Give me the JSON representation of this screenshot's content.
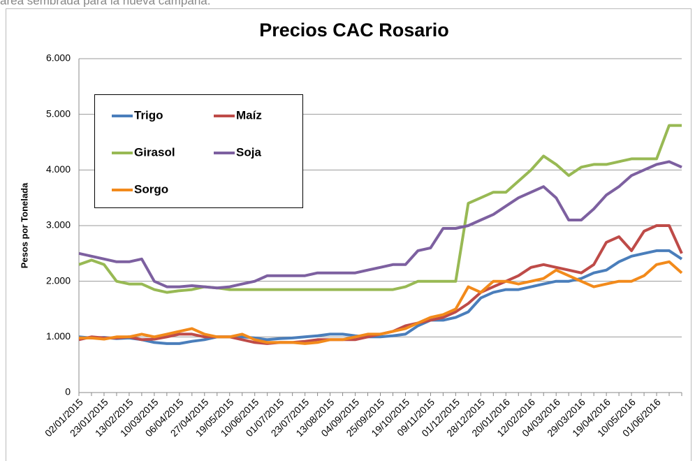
{
  "caption": "área sembrada para la nueva campaña.",
  "chart_data": {
    "type": "line",
    "title": "Precios CAC Rosario",
    "ylabel": "Pesos por Tonelada",
    "categories": [
      "02/01/2015",
      null,
      "23/01/2015",
      null,
      "13/02/2015",
      null,
      "10/03/2015",
      null,
      "06/04/2015",
      null,
      "27/04/2015",
      null,
      "19/05/2015",
      null,
      "10/06/2015",
      null,
      "01/07/2015",
      null,
      "23/07/2015",
      null,
      "13/08/2015",
      null,
      "04/09/2015",
      null,
      "25/09/2015",
      null,
      "19/10/2015",
      null,
      "09/11/2015",
      null,
      "01/12/2015",
      null,
      "28/12/2015",
      null,
      "20/01/2016",
      null,
      "12/02/2016",
      null,
      "04/03/2016",
      null,
      "29/03/2016",
      null,
      "19/04/2016",
      null,
      "10/05/2016",
      null,
      "01/06/2016",
      null,
      null
    ],
    "series": [
      {
        "name": "Trigo",
        "color": "#4a7ebb",
        "values": [
          1000,
          980,
          990,
          970,
          980,
          950,
          900,
          880,
          880,
          920,
          950,
          1000,
          1000,
          1000,
          980,
          950,
          970,
          980,
          1000,
          1020,
          1050,
          1050,
          1020,
          1000,
          1000,
          1020,
          1050,
          1200,
          1300,
          1300,
          1350,
          1450,
          1700,
          1800,
          1850,
          1850,
          1900,
          1950,
          2000,
          2000,
          2050,
          2150,
          2200,
          2350,
          2450,
          2500,
          2550,
          2550,
          2400
        ]
      },
      {
        "name": "Maíz",
        "color": "#be4b48",
        "values": [
          950,
          1000,
          980,
          980,
          1000,
          950,
          960,
          1000,
          1050,
          1050,
          1000,
          1000,
          1000,
          950,
          900,
          880,
          900,
          900,
          920,
          950,
          950,
          950,
          950,
          1000,
          1050,
          1100,
          1200,
          1250,
          1300,
          1350,
          1450,
          1600,
          1800,
          1900,
          2000,
          2100,
          2250,
          2300,
          2250,
          2200,
          2150,
          2300,
          2700,
          2800,
          2550,
          2900,
          3000,
          3000,
          2500
        ]
      },
      {
        "name": "Girasol",
        "color": "#98b954",
        "values": [
          2300,
          2380,
          2300,
          2000,
          1950,
          1950,
          1850,
          1800,
          1830,
          1850,
          1900,
          1880,
          1850,
          1850,
          1850,
          1850,
          1850,
          1850,
          1850,
          1850,
          1850,
          1850,
          1850,
          1850,
          1850,
          1850,
          1900,
          2000,
          2000,
          2000,
          2000,
          3400,
          3500,
          3600,
          3600,
          3800,
          4000,
          4250,
          4100,
          3900,
          4050,
          4100,
          4100,
          4150,
          4200,
          4200,
          4200,
          4800,
          4800
        ]
      },
      {
        "name": "Soja",
        "color": "#7d60a0",
        "values": [
          2500,
          2450,
          2400,
          2350,
          2350,
          2400,
          2000,
          1900,
          1900,
          1920,
          1900,
          1880,
          1900,
          1950,
          2000,
          2100,
          2100,
          2100,
          2100,
          2150,
          2150,
          2150,
          2150,
          2200,
          2250,
          2300,
          2300,
          2550,
          2600,
          2950,
          2950,
          3000,
          3100,
          3200,
          3350,
          3500,
          3600,
          3700,
          3500,
          3100,
          3100,
          3300,
          3550,
          3700,
          3900,
          4000,
          4100,
          4150,
          4050
        ]
      },
      {
        "name": "Sorgo",
        "color": "#f28a1b",
        "values": [
          980,
          980,
          960,
          1000,
          1000,
          1050,
          1000,
          1050,
          1100,
          1150,
          1050,
          1000,
          1000,
          1050,
          950,
          900,
          900,
          900,
          880,
          900,
          950,
          950,
          1000,
          1050,
          1050,
          1100,
          1150,
          1250,
          1350,
          1400,
          1500,
          1900,
          1800,
          2000,
          2000,
          1950,
          2000,
          2050,
          2200,
          2100,
          2000,
          1900,
          1950,
          2000,
          2000,
          2100,
          2300,
          2350,
          2150
        ]
      }
    ],
    "ylim": [
      0,
      6000
    ],
    "yticks": [
      0,
      {
        "value": 1000,
        "label": "1.000"
      },
      {
        "value": 2000,
        "label": "2.000"
      },
      {
        "value": 3000,
        "label": "3.000"
      },
      {
        "value": 4000,
        "label": "4.000"
      },
      {
        "value": 5000,
        "label": "5.000"
      },
      {
        "value": 6000,
        "label": "6.000"
      }
    ],
    "grid": true,
    "legend": "upper left"
  }
}
